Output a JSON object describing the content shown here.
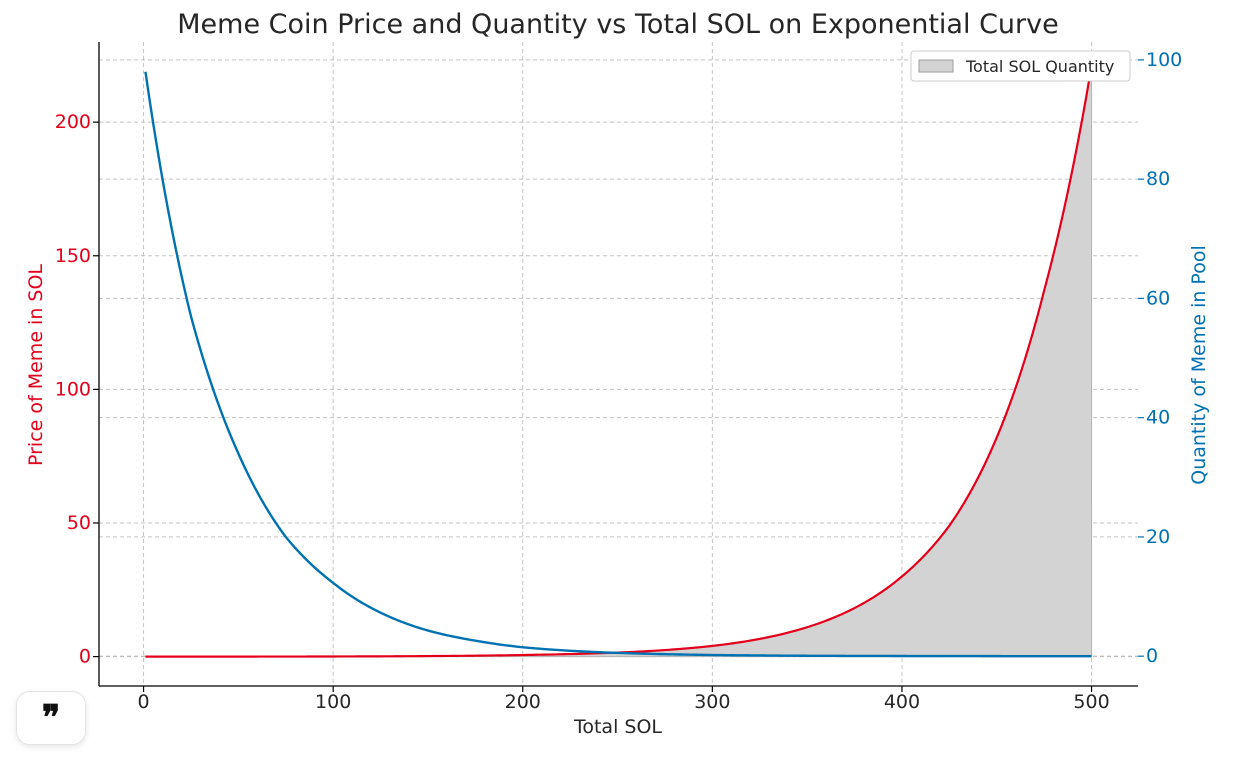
{
  "chart_data": {
    "type": "line",
    "title": "Meme Coin Price and Quantity vs Total SOL on Exponential Curve",
    "xlabel": "Total SOL",
    "ylabel_left": "Price of Meme in SOL",
    "ylabel_right": "Quantity of Meme in Pool",
    "xlim": [
      -23.5,
      524.5
    ],
    "ylim_left": [
      -11,
      230
    ],
    "ylim_right": [
      -5,
      103
    ],
    "xticks": [
      0,
      100,
      200,
      300,
      400,
      500
    ],
    "yticks_left": [
      0,
      50,
      100,
      150,
      200
    ],
    "yticks_right": [
      0,
      20,
      40,
      60,
      80,
      100
    ],
    "grid": true,
    "legend_position": "top-right",
    "legend": [
      {
        "label": "Total SOL Quantity",
        "kind": "area"
      }
    ],
    "series": [
      {
        "name": "Price of Meme in SOL",
        "axis": "left",
        "color": "#e3001b",
        "x": [
          1,
          50,
          100,
          150,
          200,
          250,
          300,
          350,
          400,
          425,
          450,
          475,
          500
        ],
        "y": [
          0.001,
          0.005,
          0.05,
          0.2,
          0.6,
          1.5,
          4.0,
          11,
          30,
          49,
          82,
          137,
          221
        ]
      },
      {
        "name": "Quantity of Meme in Pool",
        "axis": "right",
        "color": "#0072b2",
        "x": [
          1,
          25,
          50,
          75,
          100,
          125,
          150,
          175,
          200,
          250,
          300,
          350,
          400,
          450,
          500
        ],
        "y": [
          98,
          57,
          34,
          20,
          12.3,
          7.3,
          4.3,
          2.6,
          1.5,
          0.55,
          0.2,
          0.07,
          0.03,
          0.01,
          0.0
        ]
      },
      {
        "name": "Total SOL Quantity",
        "type": "area",
        "axis": "left",
        "color": "#d3d3d3",
        "x": [
          1,
          50,
          100,
          150,
          200,
          250,
          300,
          350,
          400,
          425,
          450,
          475,
          500
        ],
        "y": [
          0.001,
          0.005,
          0.05,
          0.2,
          0.6,
          1.5,
          4.0,
          11,
          30,
          49,
          82,
          137,
          221
        ]
      }
    ]
  },
  "ui": {
    "quote_button_icon": "quote-icon",
    "quote_glyph": "❞"
  }
}
